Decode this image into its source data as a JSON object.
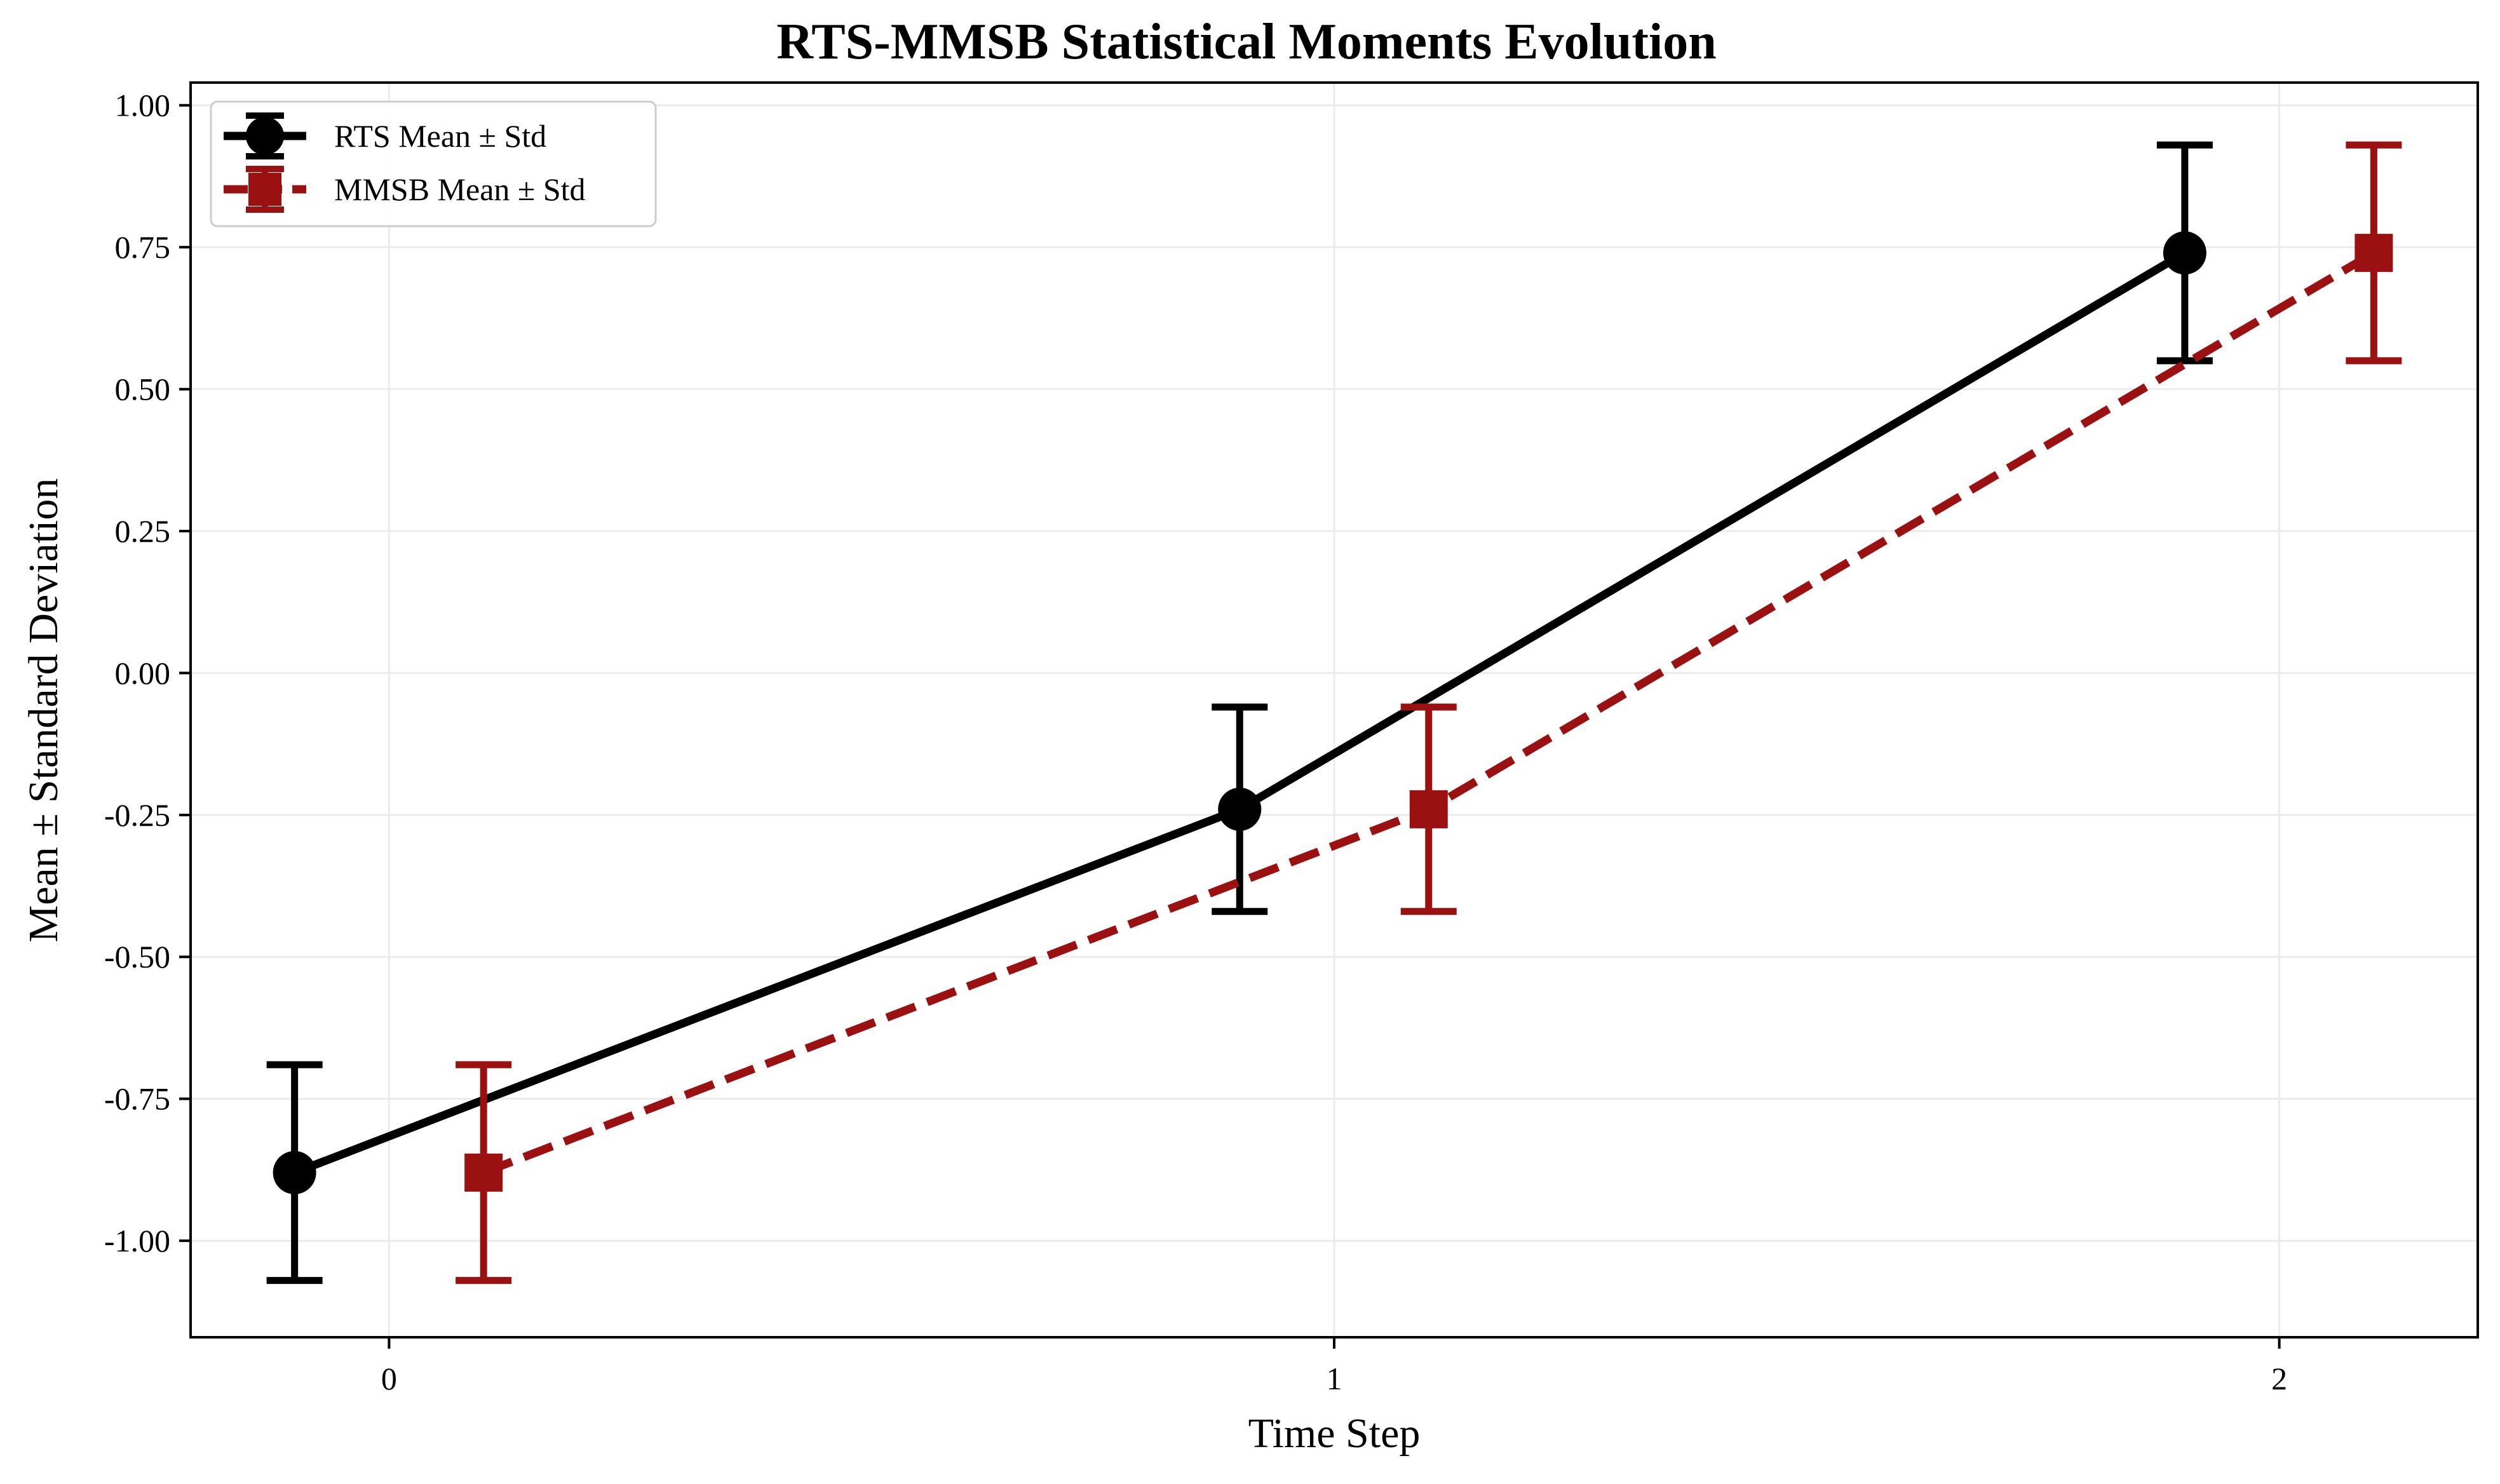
{
  "chart_data": {
    "type": "line",
    "title": "RTS-MMSB Statistical Moments Evolution",
    "xlabel": "Time Step",
    "ylabel": "Mean ± Standard Deviation",
    "xlim": [
      -0.21,
      2.21
    ],
    "ylim": [
      -1.17,
      1.04
    ],
    "x_ticks": [
      0,
      1,
      2
    ],
    "x_tick_labels": [
      "0",
      "1",
      "2"
    ],
    "y_ticks": [
      1.0,
      0.75,
      0.5,
      0.25,
      0.0,
      -0.25,
      -0.5,
      -0.75,
      -1.0
    ],
    "y_tick_labels": [
      "1.00",
      "0.75",
      "0.50",
      "0.25",
      "0.00",
      "-0.25",
      "-0.50",
      "-0.75",
      "-1.00"
    ],
    "grid": true,
    "legend_position": "top-left",
    "series": [
      {
        "name": "RTS Mean ± Std",
        "color": "#000000",
        "line_style": "solid",
        "marker": "circle",
        "x": [
          -0.1,
          0.9,
          1.9
        ],
        "values": [
          -0.88,
          -0.24,
          0.74
        ],
        "std": [
          0.19,
          0.18,
          0.19
        ]
      },
      {
        "name": "MMSB Mean ± Std",
        "color": "#9b1010",
        "line_style": "dashed",
        "marker": "square",
        "x": [
          0.1,
          1.1,
          2.1
        ],
        "values": [
          -0.88,
          -0.24,
          0.74
        ],
        "std": [
          0.19,
          0.18,
          0.19
        ]
      }
    ]
  }
}
